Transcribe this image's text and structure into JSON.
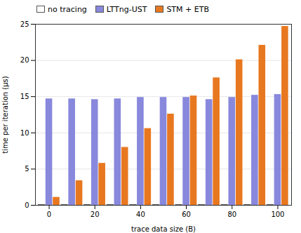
{
  "chart_data": {
    "type": "bar",
    "xlabel": "trace data size (B)",
    "ylabel": "time per iteration (μs)",
    "x": [
      0,
      10,
      20,
      30,
      40,
      50,
      60,
      70,
      80,
      90,
      100
    ],
    "series": [
      {
        "name": "no tracing",
        "color": "#ffffff",
        "values": [
          0.05,
          0.05,
          0.05,
          0.05,
          0.05,
          0.05,
          0.05,
          0.05,
          0.05,
          0.05,
          0.05
        ]
      },
      {
        "name": "LTTng-UST",
        "color": "#8888dd",
        "values": [
          14.7,
          14.7,
          14.6,
          14.7,
          14.9,
          14.9,
          14.9,
          14.6,
          14.9,
          15.2,
          15.3
        ]
      },
      {
        "name": "STM + ETB",
        "color": "#e87820",
        "values": [
          1.1,
          3.4,
          5.8,
          8.0,
          10.6,
          12.6,
          15.1,
          17.6,
          20.1,
          22.1,
          24.7
        ]
      }
    ],
    "xlim": [
      -6,
      106
    ],
    "xticks": [
      0,
      20,
      40,
      60,
      80,
      100
    ],
    "ylim": [
      0,
      25
    ],
    "yticks": [
      0,
      5,
      10,
      15,
      20,
      25
    ],
    "grid": true,
    "legend": "upper left"
  }
}
